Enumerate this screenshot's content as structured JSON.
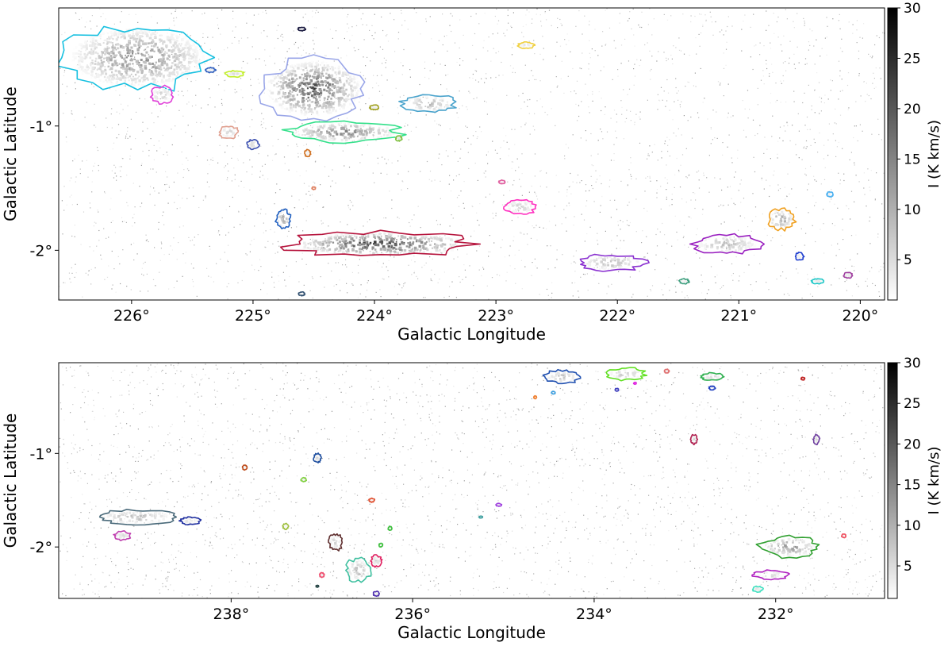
{
  "chart_data": [
    {
      "type": "heatmap",
      "panel": "top",
      "xlabel": "Galactic Longitude",
      "ylabel": "Galactic Latitude",
      "xlim": [
        226.6,
        219.8
      ],
      "ylim": [
        -2.4,
        -0.05
      ],
      "xticks": [
        226,
        225,
        224,
        223,
        222,
        221,
        220
      ],
      "xtick_labels": [
        "226°",
        "225°",
        "224°",
        "223°",
        "222°",
        "221°",
        "220°"
      ],
      "yticks": [
        -1,
        -2
      ],
      "ytick_labels": [
        "-1°",
        "-2°"
      ],
      "colorbar": {
        "label": "I (K km/s)",
        "range": [
          1,
          30
        ],
        "ticks": [
          5,
          10,
          15,
          20,
          25,
          30
        ],
        "tick_labels": [
          "5",
          "10",
          "15",
          "20",
          "25",
          "30"
        ],
        "colormap": "greys"
      },
      "clouds": [
        {
          "l": 225.95,
          "b": -0.45,
          "w": 1.2,
          "h": 0.52,
          "color": "#16c0e0",
          "peak": 18
        },
        {
          "l": 224.5,
          "b": -0.7,
          "w": 0.85,
          "h": 0.48,
          "color": "#9aa6e8",
          "peak": 25
        },
        {
          "l": 224.25,
          "b": -1.05,
          "w": 0.95,
          "h": 0.16,
          "color": "#33e08a",
          "peak": 20
        },
        {
          "l": 223.55,
          "b": -0.82,
          "w": 0.45,
          "h": 0.14,
          "color": "#4aa3cc",
          "peak": 12
        },
        {
          "l": 223.95,
          "b": -1.95,
          "w": 1.55,
          "h": 0.2,
          "color": "#b5123b",
          "peak": 30
        },
        {
          "l": 225.75,
          "b": -0.75,
          "w": 0.18,
          "h": 0.14,
          "color": "#e040d8",
          "peak": 9
        },
        {
          "l": 225.15,
          "b": -0.58,
          "w": 0.16,
          "h": 0.05,
          "color": "#c2ef2a",
          "peak": 7
        },
        {
          "l": 225.2,
          "b": -1.05,
          "w": 0.16,
          "h": 0.1,
          "color": "#e0a090",
          "peak": 8
        },
        {
          "l": 225.0,
          "b": -1.15,
          "w": 0.1,
          "h": 0.08,
          "color": "#3b4fb0",
          "peak": 8
        },
        {
          "l": 224.75,
          "b": -1.75,
          "w": 0.12,
          "h": 0.15,
          "color": "#1f5fc0",
          "peak": 16
        },
        {
          "l": 222.8,
          "b": -1.65,
          "w": 0.25,
          "h": 0.13,
          "color": "#ff30c0",
          "peak": 9
        },
        {
          "l": 222.75,
          "b": -0.35,
          "w": 0.14,
          "h": 0.05,
          "color": "#f0d040",
          "peak": 6
        },
        {
          "l": 222.05,
          "b": -2.1,
          "w": 0.55,
          "h": 0.13,
          "color": "#8a30d0",
          "peak": 12
        },
        {
          "l": 221.1,
          "b": -1.95,
          "w": 0.55,
          "h": 0.16,
          "color": "#9a20c0",
          "peak": 11
        },
        {
          "l": 220.65,
          "b": -1.75,
          "w": 0.22,
          "h": 0.17,
          "color": "#f0a020",
          "peak": 16
        },
        {
          "l": 224.6,
          "b": -0.22,
          "w": 0.06,
          "h": 0.03,
          "color": "#1a1a40",
          "peak": 6
        },
        {
          "l": 224.55,
          "b": -1.22,
          "w": 0.05,
          "h": 0.06,
          "color": "#d07020",
          "peak": 6
        },
        {
          "l": 220.35,
          "b": -2.25,
          "w": 0.1,
          "h": 0.04,
          "color": "#20c8c8",
          "peak": 6
        },
        {
          "l": 220.5,
          "b": -2.05,
          "w": 0.07,
          "h": 0.06,
          "color": "#2040d0",
          "peak": 6
        },
        {
          "l": 221.45,
          "b": -2.25,
          "w": 0.08,
          "h": 0.04,
          "color": "#40a080",
          "peak": 5
        },
        {
          "l": 220.1,
          "b": -2.2,
          "w": 0.07,
          "h": 0.05,
          "color": "#a040a0",
          "peak": 6
        },
        {
          "l": 220.25,
          "b": -1.55,
          "w": 0.05,
          "h": 0.04,
          "color": "#4ab0f0",
          "peak": 5
        },
        {
          "l": 224.0,
          "b": -0.85,
          "w": 0.08,
          "h": 0.04,
          "color": "#a0a020",
          "peak": 6
        },
        {
          "l": 223.8,
          "b": -1.1,
          "w": 0.05,
          "h": 0.04,
          "color": "#80c040",
          "peak": 6
        },
        {
          "l": 222.95,
          "b": -1.45,
          "w": 0.05,
          "h": 0.03,
          "color": "#e060a0",
          "peak": 5
        },
        {
          "l": 225.35,
          "b": -0.55,
          "w": 0.08,
          "h": 0.04,
          "color": "#3060c0",
          "peak": 7
        },
        {
          "l": 224.5,
          "b": -1.5,
          "w": 0.03,
          "h": 0.02,
          "color": "#e08060",
          "peak": 5
        },
        {
          "l": 224.6,
          "b": -2.35,
          "w": 0.05,
          "h": 0.03,
          "color": "#305070",
          "peak": 5
        }
      ]
    },
    {
      "type": "heatmap",
      "panel": "bottom",
      "xlabel": "Galactic Longitude",
      "ylabel": "Galactic Latitude",
      "xlim": [
        239.9,
        230.8
      ],
      "ylim": [
        -2.55,
        -0.03
      ],
      "xticks": [
        238,
        236,
        234,
        232
      ],
      "xtick_labels": [
        "238°",
        "236°",
        "234°",
        "232°"
      ],
      "yticks": [
        -1,
        -2
      ],
      "ytick_labels": [
        "-1°",
        "-2°"
      ],
      "colorbar": {
        "label": "I (K km/s)",
        "range": [
          1,
          30
        ],
        "ticks": [
          5,
          10,
          15,
          20,
          25,
          30
        ],
        "tick_labels": [
          "5",
          "10",
          "15",
          "20",
          "25",
          "30"
        ],
        "colormap": "greys"
      },
      "clouds": [
        {
          "l": 239.05,
          "b": -1.68,
          "w": 0.85,
          "h": 0.16,
          "color": "#4a6a7a",
          "peak": 12
        },
        {
          "l": 239.2,
          "b": -1.88,
          "w": 0.18,
          "h": 0.1,
          "color": "#c040b0",
          "peak": 8
        },
        {
          "l": 238.45,
          "b": -1.72,
          "w": 0.22,
          "h": 0.08,
          "color": "#2030a0",
          "peak": 6
        },
        {
          "l": 236.6,
          "b": -2.25,
          "w": 0.28,
          "h": 0.25,
          "color": "#40c0a0",
          "peak": 12
        },
        {
          "l": 236.4,
          "b": -2.15,
          "w": 0.12,
          "h": 0.12,
          "color": "#e02060",
          "peak": 8
        },
        {
          "l": 236.85,
          "b": -1.95,
          "w": 0.15,
          "h": 0.18,
          "color": "#603030",
          "peak": 9
        },
        {
          "l": 237.05,
          "b": -1.05,
          "w": 0.08,
          "h": 0.1,
          "color": "#2050a0",
          "peak": 7
        },
        {
          "l": 234.35,
          "b": -0.18,
          "w": 0.4,
          "h": 0.14,
          "color": "#2050b0",
          "peak": 12
        },
        {
          "l": 233.65,
          "b": -0.15,
          "w": 0.42,
          "h": 0.13,
          "color": "#60e020",
          "peak": 10
        },
        {
          "l": 232.7,
          "b": -0.18,
          "w": 0.25,
          "h": 0.08,
          "color": "#30b050",
          "peak": 7
        },
        {
          "l": 231.85,
          "b": -2.0,
          "w": 0.65,
          "h": 0.22,
          "color": "#30a030",
          "peak": 18
        },
        {
          "l": 232.05,
          "b": -2.3,
          "w": 0.38,
          "h": 0.1,
          "color": "#b020c0",
          "peak": 8
        },
        {
          "l": 232.2,
          "b": -2.45,
          "w": 0.12,
          "h": 0.06,
          "color": "#40e0c0",
          "peak": 6
        },
        {
          "l": 232.9,
          "b": -0.85,
          "w": 0.07,
          "h": 0.1,
          "color": "#b02050",
          "peak": 7
        },
        {
          "l": 231.55,
          "b": -0.85,
          "w": 0.07,
          "h": 0.1,
          "color": "#7040a0",
          "peak": 8
        },
        {
          "l": 237.85,
          "b": -1.15,
          "w": 0.05,
          "h": 0.05,
          "color": "#c05020",
          "peak": 5
        },
        {
          "l": 237.4,
          "b": -1.78,
          "w": 0.06,
          "h": 0.06,
          "color": "#a0c040",
          "peak": 5
        },
        {
          "l": 237.2,
          "b": -1.28,
          "w": 0.06,
          "h": 0.04,
          "color": "#80d040",
          "peak": 5
        },
        {
          "l": 236.45,
          "b": -1.5,
          "w": 0.06,
          "h": 0.04,
          "color": "#e05030",
          "peak": 5
        },
        {
          "l": 236.25,
          "b": -1.8,
          "w": 0.04,
          "h": 0.04,
          "color": "#40c040",
          "peak": 5
        },
        {
          "l": 236.35,
          "b": -1.98,
          "w": 0.04,
          "h": 0.04,
          "color": "#40c040",
          "peak": 5
        },
        {
          "l": 236.4,
          "b": -2.5,
          "w": 0.07,
          "h": 0.05,
          "color": "#5030b0",
          "peak": 5
        },
        {
          "l": 237.0,
          "b": -2.3,
          "w": 0.05,
          "h": 0.05,
          "color": "#f05070",
          "peak": 5
        },
        {
          "l": 237.05,
          "b": -2.42,
          "w": 0.03,
          "h": 0.02,
          "color": "#204040",
          "peak": 5
        },
        {
          "l": 235.05,
          "b": -1.55,
          "w": 0.06,
          "h": 0.03,
          "color": "#a040e0",
          "peak": 5
        },
        {
          "l": 235.25,
          "b": -1.68,
          "w": 0.04,
          "h": 0.02,
          "color": "#40a0a0",
          "peak": 5
        },
        {
          "l": 233.2,
          "b": -0.12,
          "w": 0.05,
          "h": 0.04,
          "color": "#e07070",
          "peak": 5
        },
        {
          "l": 233.75,
          "b": -0.32,
          "w": 0.04,
          "h": 0.03,
          "color": "#4040c0",
          "peak": 5
        },
        {
          "l": 234.45,
          "b": -0.35,
          "w": 0.04,
          "h": 0.03,
          "color": "#40a0e0",
          "peak": 5
        },
        {
          "l": 234.65,
          "b": -0.4,
          "w": 0.03,
          "h": 0.03,
          "color": "#f08030",
          "peak": 5
        },
        {
          "l": 233.55,
          "b": -0.25,
          "w": 0.03,
          "h": 0.02,
          "color": "#e020e0",
          "peak": 5
        },
        {
          "l": 232.7,
          "b": -0.3,
          "w": 0.07,
          "h": 0.04,
          "color": "#2040c0",
          "peak": 5
        },
        {
          "l": 231.7,
          "b": -0.2,
          "w": 0.04,
          "h": 0.03,
          "color": "#c02020",
          "peak": 5
        },
        {
          "l": 231.25,
          "b": -1.88,
          "w": 0.05,
          "h": 0.04,
          "color": "#f05060",
          "peak": 5
        }
      ]
    }
  ]
}
